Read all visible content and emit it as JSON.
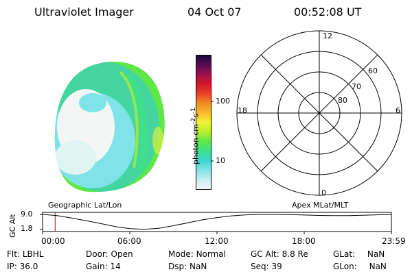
{
  "header": {
    "title": "Ultraviolet Imager",
    "date": "04 Oct 07",
    "time": "00:52:08 UT"
  },
  "colorbar": {
    "label": "photon cm",
    "label_sup1": "-2",
    "label_mid": "s",
    "label_sup2": "-1",
    "ticks": [
      "100",
      "10"
    ],
    "stops": [
      "#f4f4f4",
      "#c8eef0",
      "#7fe3e8",
      "#3cd6d0",
      "#3ee08a",
      "#5ee846",
      "#b8ee30",
      "#f2f23a",
      "#f8b830",
      "#f08a20",
      "#e8402a",
      "#d0182a",
      "#a0104c",
      "#5a0a56",
      "#1a0a3a"
    ]
  },
  "polar": {
    "mlt_labels": {
      "top": "12",
      "left": "18",
      "right": "6",
      "bottom": "0"
    },
    "lat_labels": [
      "60",
      "70",
      "80"
    ]
  },
  "timeline": {
    "y_label": "GC Alt",
    "y_ticks": [
      "9.0",
      "1.8"
    ],
    "left_caption": "Geographic Lat/Lon",
    "right_caption": "Apex MLat/MLT",
    "x_ticks": [
      "00:00",
      "06:00",
      "12:00",
      "18:00",
      "23:59"
    ],
    "marker_time": "00:52",
    "altitude_profile": [
      [
        0,
        9.0
      ],
      [
        1,
        8.4
      ],
      [
        2,
        7.3
      ],
      [
        3,
        6.0
      ],
      [
        4,
        4.6
      ],
      [
        5,
        3.2
      ],
      [
        6,
        2.2
      ],
      [
        7,
        1.9
      ],
      [
        8,
        2.4
      ],
      [
        9,
        3.6
      ],
      [
        10,
        5.0
      ],
      [
        11,
        6.4
      ],
      [
        12,
        7.5
      ],
      [
        13,
        8.3
      ],
      [
        14,
        8.8
      ],
      [
        15,
        9.0
      ],
      [
        16,
        9.0
      ],
      [
        17,
        8.9
      ],
      [
        18,
        8.7
      ],
      [
        19,
        8.5
      ],
      [
        20,
        8.4
      ],
      [
        21,
        8.4
      ],
      [
        22,
        8.6
      ],
      [
        23,
        8.8
      ],
      [
        24,
        9.0
      ]
    ]
  },
  "info": {
    "flt_label": "Flt:",
    "flt_value": "LBHL",
    "ip_label": "IP:",
    "ip_value": "36.0",
    "door_label": "Door:",
    "door_value": "Open",
    "gain_label": "Gain:",
    "gain_value": "14",
    "mode_label": "Mode:",
    "mode_value": "Normal",
    "dsp_label": "Dsp:",
    "dsp_value": "NaN",
    "gcalt_label": "GC Alt:",
    "gcalt_value": "8.8 Re",
    "seq_label": "Seq:",
    "seq_value": "39",
    "glat_label": "GLat:",
    "glat_value": "NaN",
    "glon_label": "GLon:",
    "glon_value": "NaN"
  }
}
